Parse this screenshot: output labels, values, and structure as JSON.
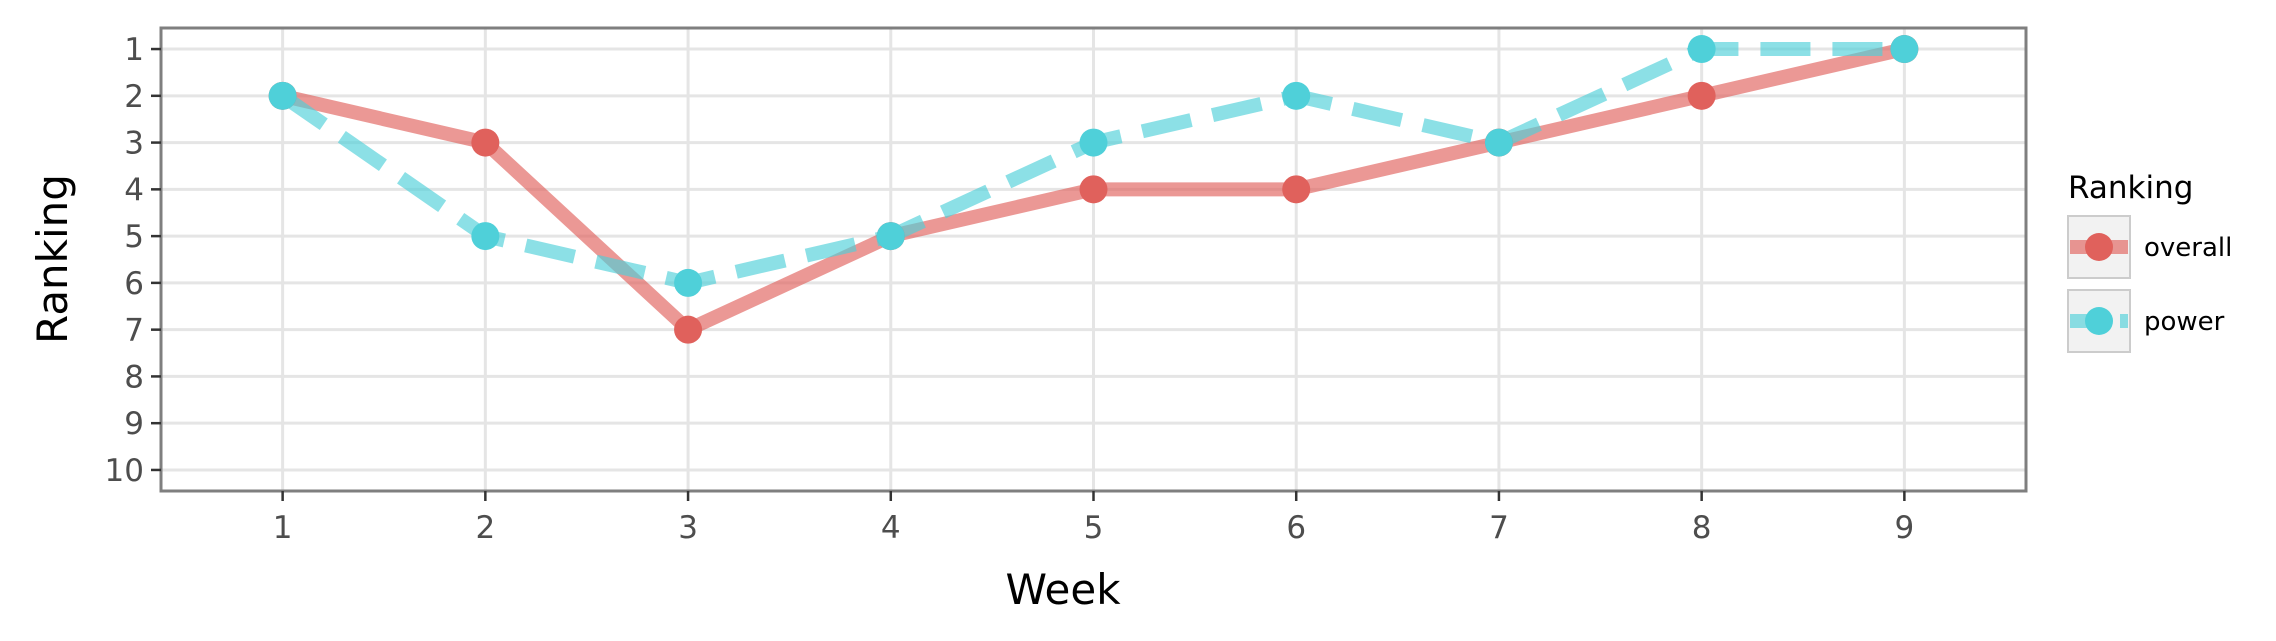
{
  "chart_data": {
    "type": "line",
    "xlabel": "Week",
    "ylabel": "Ranking",
    "x": [
      1,
      2,
      3,
      4,
      5,
      6,
      7,
      8,
      9
    ],
    "x_ticks": [
      "1",
      "2",
      "3",
      "4",
      "5",
      "6",
      "7",
      "8",
      "9"
    ],
    "y_ticks": [
      "1",
      "2",
      "3",
      "4",
      "5",
      "6",
      "7",
      "8",
      "9",
      "10"
    ],
    "xlim": [
      0.4,
      9.6
    ],
    "ylim": [
      10.45,
      0.55
    ],
    "y_reversed": true,
    "grid": true,
    "legend": {
      "title": "Ranking",
      "position": "right"
    },
    "series": [
      {
        "name": "overall",
        "values": [
          2,
          3,
          7,
          5,
          4,
          4,
          3,
          2,
          1
        ],
        "color": "#e0615c",
        "line_style": "solid"
      },
      {
        "name": "power",
        "values": [
          2,
          5,
          6,
          5,
          3,
          2,
          3,
          1,
          1
        ],
        "color": "#4fd0d9",
        "line_style": "dashed"
      }
    ]
  }
}
